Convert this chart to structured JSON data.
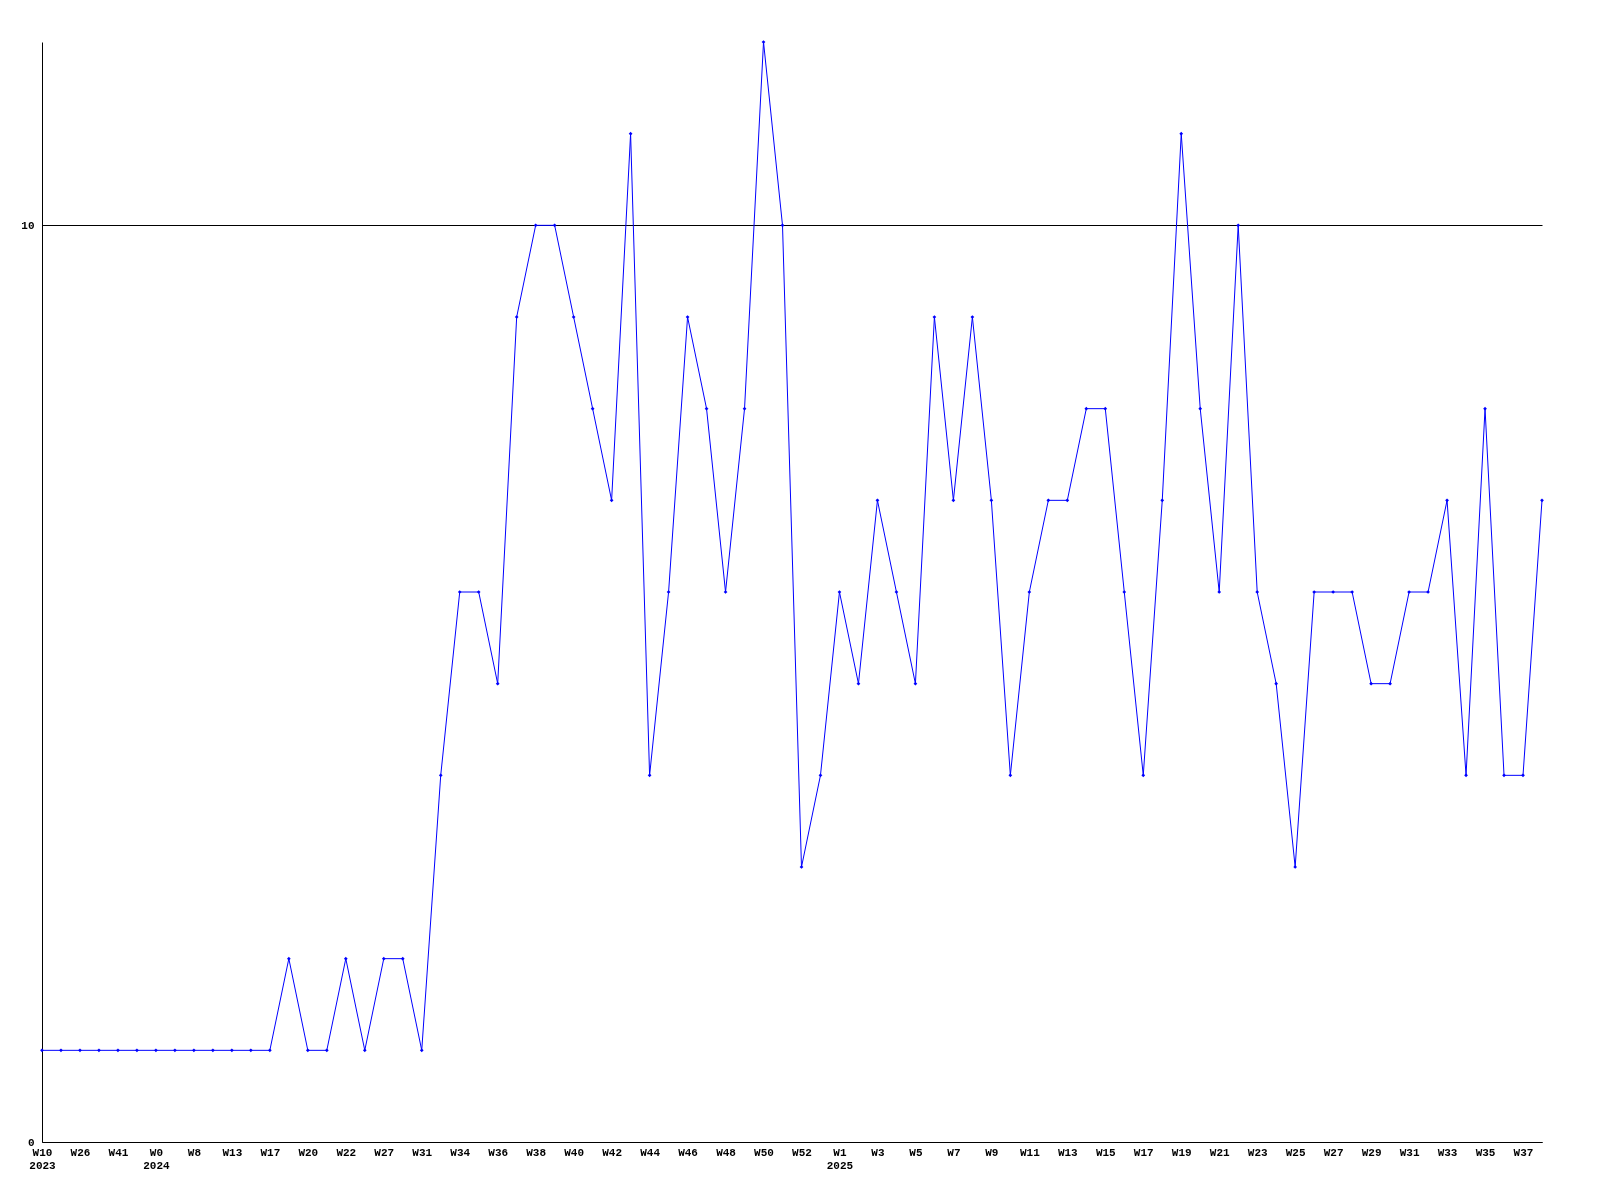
{
  "chart_data": {
    "type": "line",
    "categories": [
      "W10\n2023",
      null,
      "W26",
      null,
      "W41",
      null,
      "W0\n2024",
      null,
      "W8",
      null,
      "W13",
      null,
      "W17",
      null,
      "W20",
      null,
      "W22",
      null,
      "W27",
      null,
      "W31",
      null,
      "W34",
      null,
      "W36",
      null,
      "W38",
      null,
      "W40",
      null,
      "W42",
      null,
      "W44",
      null,
      "W46",
      null,
      "W48",
      null,
      "W50",
      null,
      "W52",
      null,
      "W1\n2025",
      null,
      "W3",
      null,
      "W5",
      null,
      "W7",
      null,
      "W9",
      null,
      "W11",
      null,
      "W13",
      null,
      "W15",
      null,
      "W17",
      null,
      "W19",
      null,
      "W21",
      null,
      "W23",
      null,
      "W25",
      null,
      "W27",
      null,
      "W29",
      null,
      "W31",
      null,
      "W33",
      null,
      "W35",
      null,
      "W37",
      null
    ],
    "series": [
      {
        "color": "#0000ff",
        "values": [
          1,
          1,
          1,
          1,
          1,
          1,
          1,
          1,
          1,
          1,
          1,
          1,
          1,
          2,
          1,
          1,
          2,
          1,
          2,
          2,
          1,
          4,
          6,
          6,
          5,
          9,
          10,
          10,
          9,
          8,
          7,
          11,
          4,
          6,
          9,
          8,
          6,
          8,
          12,
          10,
          3,
          4,
          6,
          5,
          7,
          6,
          5,
          9,
          7,
          9,
          7,
          4,
          6,
          7,
          7,
          8,
          8,
          6,
          4,
          7,
          11,
          8,
          6,
          10,
          6,
          5,
          3,
          6,
          6,
          6,
          5,
          5,
          6,
          6,
          7,
          4,
          8,
          4,
          4,
          7
        ]
      }
    ],
    "ylim": [
      0,
      12
    ],
    "yticks": [
      0,
      10
    ],
    "grid": "y",
    "marker": "diamond"
  }
}
